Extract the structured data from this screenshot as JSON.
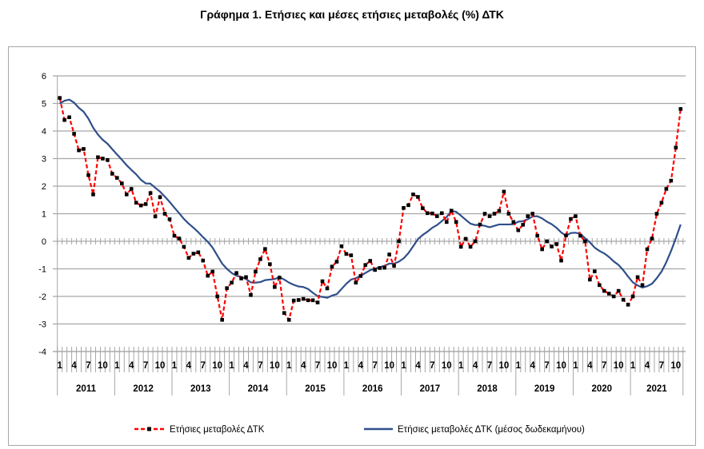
{
  "title": "Γράφημα 1. Ετήσιες και μέσες ετήσιες μεταβολές (%) ΔΤΚ",
  "chart_data": {
    "type": "line",
    "title": "Γράφημα 1. Ετήσιες και μέσες ετήσιες μεταβολές (%) ΔΤΚ",
    "xlabel": "",
    "ylabel": "",
    "ylim": [
      -4,
      6
    ],
    "yticks": [
      "6",
      "5",
      "4",
      "3",
      "2",
      "1",
      "0",
      "-1",
      "-2",
      "-3",
      "-4"
    ],
    "x_start": "2011-01",
    "x_end": "2021-11",
    "month_tick_labels": [
      "1",
      "4",
      "7",
      "10"
    ],
    "years": [
      "2011",
      "2012",
      "2013",
      "2014",
      "2015",
      "2016",
      "2017",
      "2018",
      "2019",
      "2020",
      "2021"
    ],
    "grid": true,
    "legend": "bottom",
    "series": [
      {
        "name": "Ετήσιες μεταβολές ΔΤΚ",
        "color": "#ff0000",
        "marker_color": "#000000",
        "style": "dashed-with-square-markers",
        "values": [
          5.2,
          4.4,
          4.5,
          3.9,
          3.3,
          3.35,
          2.4,
          1.7,
          3.05,
          3.0,
          2.95,
          2.45,
          2.3,
          2.1,
          1.7,
          1.9,
          1.4,
          1.3,
          1.35,
          1.75,
          0.9,
          1.6,
          1.0,
          0.8,
          0.2,
          0.1,
          -0.2,
          -0.6,
          -0.45,
          -0.4,
          -0.7,
          -1.25,
          -1.1,
          -2.0,
          -2.85,
          -1.7,
          -1.5,
          -1.15,
          -1.35,
          -1.3,
          -1.95,
          -1.1,
          -0.65,
          -0.28,
          -0.83,
          -1.66,
          -1.32,
          -2.6,
          -2.85,
          -2.15,
          -2.13,
          -2.09,
          -2.14,
          -2.14,
          -2.22,
          -1.45,
          -1.71,
          -0.92,
          -0.74,
          -0.18,
          -0.46,
          -0.51,
          -1.5,
          -1.26,
          -0.86,
          -0.71,
          -1.04,
          -0.97,
          -0.96,
          -0.48,
          -0.89,
          0.0,
          1.21,
          1.31,
          1.7,
          1.61,
          1.2,
          1.02,
          1.01,
          0.91,
          1.02,
          0.7,
          1.11,
          0.7,
          -0.2,
          0.09,
          -0.2,
          0.0,
          0.61,
          1.0,
          0.91,
          1.0,
          1.1,
          1.8,
          1.0,
          0.7,
          0.4,
          0.6,
          0.91,
          1.0,
          0.2,
          -0.29,
          0.0,
          -0.19,
          -0.1,
          -0.7,
          0.21,
          0.81,
          0.91,
          0.2,
          0.0,
          -1.39,
          -1.09,
          -1.59,
          -1.8,
          -1.9,
          -2.0,
          -1.8,
          -2.12,
          -2.3,
          -2.0,
          -1.3,
          -1.59,
          -0.29,
          0.1,
          1.0,
          1.4,
          1.9,
          2.2,
          3.4,
          4.8
        ]
      },
      {
        "name": "Ετήσιες μεταβολές ΔΤΚ (μέσος δωδεκαμήνου)",
        "color": "#2f4f8a",
        "style": "solid",
        "values": [
          5.0,
          5.1,
          5.14,
          5.03,
          4.84,
          4.7,
          4.45,
          4.12,
          3.87,
          3.68,
          3.54,
          3.34,
          3.15,
          2.96,
          2.76,
          2.59,
          2.43,
          2.23,
          2.1,
          2.09,
          1.94,
          1.8,
          1.62,
          1.43,
          1.22,
          1.02,
          0.81,
          0.64,
          0.49,
          0.33,
          0.15,
          -0.02,
          -0.23,
          -0.52,
          -0.81,
          -1.0,
          -1.15,
          -1.25,
          -1.29,
          -1.37,
          -1.49,
          -1.5,
          -1.48,
          -1.41,
          -1.39,
          -1.37,
          -1.3,
          -1.39,
          -1.5,
          -1.58,
          -1.64,
          -1.66,
          -1.73,
          -1.87,
          -1.99,
          -2.02,
          -2.05,
          -1.97,
          -1.92,
          -1.73,
          -1.54,
          -1.39,
          -1.34,
          -1.25,
          -1.15,
          -1.05,
          -0.99,
          -0.94,
          -0.89,
          -0.81,
          -0.81,
          -0.74,
          -0.62,
          -0.43,
          -0.18,
          0.08,
          0.23,
          0.35,
          0.49,
          0.59,
          0.73,
          0.88,
          1.1,
          1.07,
          0.93,
          0.78,
          0.64,
          0.59,
          0.59,
          0.56,
          0.51,
          0.56,
          0.61,
          0.61,
          0.61,
          0.62,
          0.71,
          0.73,
          0.8,
          0.9,
          0.91,
          0.83,
          0.71,
          0.62,
          0.49,
          0.32,
          0.2,
          0.3,
          0.31,
          0.27,
          0.11,
          -0.04,
          -0.23,
          -0.35,
          -0.44,
          -0.57,
          -0.73,
          -0.86,
          -1.05,
          -1.28,
          -1.49,
          -1.6,
          -1.68,
          -1.63,
          -1.54,
          -1.34,
          -1.1,
          -0.76,
          -0.35,
          0.11,
          0.61
        ]
      }
    ]
  }
}
